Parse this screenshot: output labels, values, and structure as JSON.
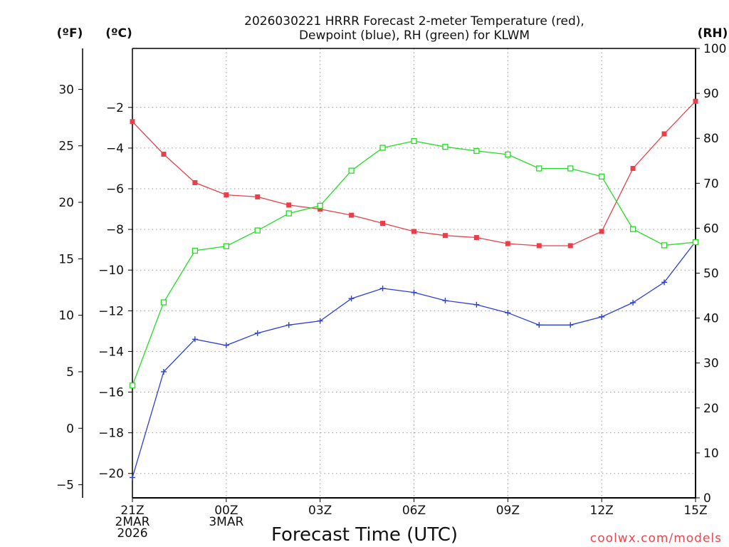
{
  "chart_data": {
    "type": "line",
    "title_line1": "2026030221 HRRR Forecast 2-meter Temperature (red),",
    "title_line2": "Dewpoint (blue), RH (green) for KLWM",
    "xlabel": "Forecast Time (UTC)",
    "credit": "coolwx.com/models",
    "units": {
      "f": "(ºF)",
      "c": "(ºC)",
      "rh": "(RH)"
    },
    "x_hours": [
      0,
      1,
      2,
      3,
      4,
      5,
      6,
      7,
      8,
      9,
      10,
      11,
      12,
      13,
      14,
      15,
      16,
      17,
      18
    ],
    "x_ticks": [
      {
        "hour": 0,
        "lines": [
          "21Z",
          "2MAR",
          "2026"
        ]
      },
      {
        "hour": 3,
        "lines": [
          "00Z",
          "3MAR"
        ]
      },
      {
        "hour": 6,
        "lines": [
          "03Z"
        ]
      },
      {
        "hour": 9,
        "lines": [
          "06Z"
        ]
      },
      {
        "hour": 12,
        "lines": [
          "09Z"
        ]
      },
      {
        "hour": 15,
        "lines": [
          "12Z"
        ]
      },
      {
        "hour": 18,
        "lines": [
          "15Z"
        ]
      }
    ],
    "ylim_c": [
      -21.2,
      0.9
    ],
    "yticks_c": [
      -20,
      -18,
      -16,
      -14,
      -12,
      -10,
      -8,
      -6,
      -4,
      -2
    ],
    "ylim_f": [
      -6.16,
      33.62
    ],
    "yticks_f": [
      -5,
      0,
      5,
      10,
      15,
      20,
      25,
      30
    ],
    "ylim_rh": [
      0,
      100
    ],
    "yticks_rh": [
      0,
      10,
      20,
      30,
      40,
      50,
      60,
      70,
      80,
      90,
      100
    ],
    "series": [
      {
        "name": "Temperature",
        "axis": "c",
        "color": "#e8404a",
        "marker": "filled-square",
        "values": [
          -2.7,
          -4.3,
          -5.7,
          -6.3,
          -6.4,
          -6.8,
          -7.0,
          -7.3,
          -7.7,
          -8.1,
          -8.3,
          -8.4,
          -8.7,
          -8.8,
          -8.8,
          -8.1,
          -5.0,
          -3.3,
          -1.7
        ]
      },
      {
        "name": "Dewpoint",
        "axis": "c",
        "color": "#2c3fd8",
        "marker": "plus",
        "values": [
          -20.2,
          -15.0,
          -13.4,
          -13.7,
          -13.1,
          -12.7,
          -12.5,
          -11.4,
          -10.9,
          -11.1,
          -11.5,
          -11.7,
          -12.1,
          -12.7,
          -12.7,
          -12.3,
          -11.6,
          -10.6,
          -8.6
        ]
      },
      {
        "name": "RH",
        "axis": "rh",
        "color": "#22dd22",
        "marker": "open-square",
        "values": [
          25,
          43.5,
          55,
          56,
          59.5,
          63.3,
          65,
          72.8,
          77.9,
          79.4,
          78.1,
          77.2,
          76.4,
          73.3,
          73.3,
          71.5,
          59.8,
          56.2,
          56.9
        ]
      }
    ]
  }
}
